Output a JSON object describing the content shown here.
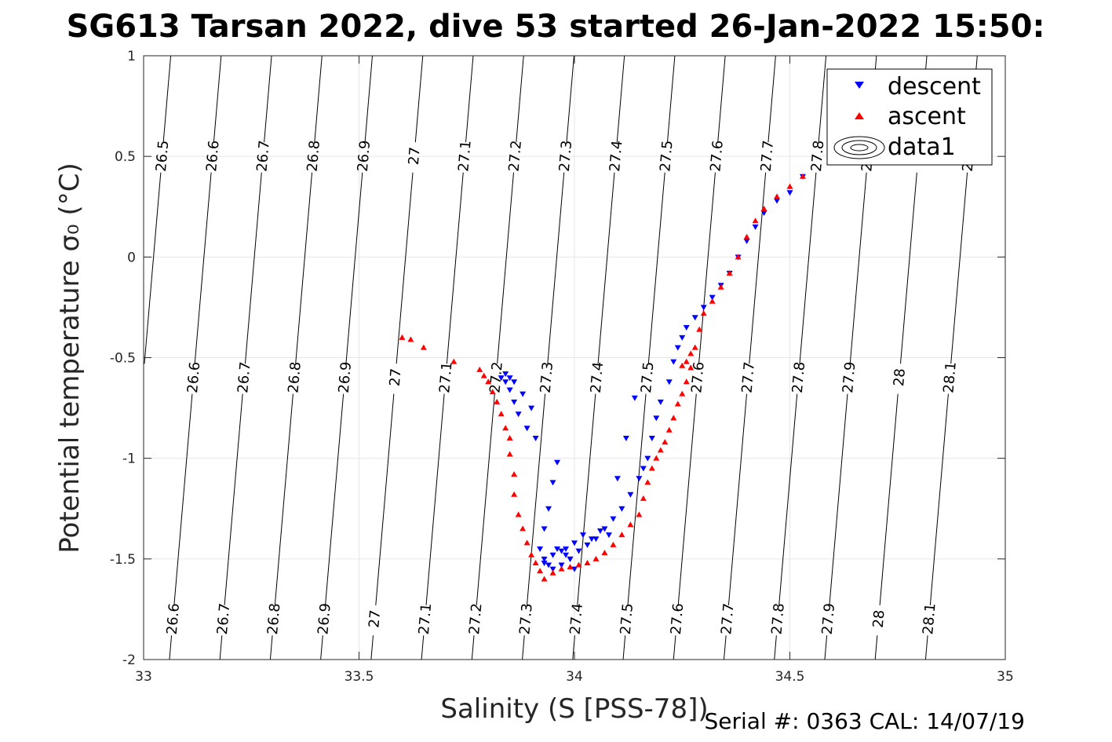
{
  "title": "SG613 Tarsan 2022, dive 53 started 26-Jan-2022 15:50:",
  "footer": "Serial #: 0363  CAL: 14/07/19",
  "chart_data": {
    "type": "scatter",
    "title": "SG613 Tarsan 2022, dive 53 started 26-Jan-2022 15:50:",
    "xlabel": "Salinity (S [PSS-78])",
    "ylabel": "Potential temperature σ₀ (°C)",
    "xlim": [
      33,
      35
    ],
    "ylim": [
      -2,
      1
    ],
    "x_ticks": [
      33,
      33.5,
      34,
      34.5,
      35
    ],
    "y_ticks": [
      -2,
      -1.5,
      -1,
      -0.5,
      0,
      0.5,
      1
    ],
    "x_tick_labels": [
      "33",
      "33.5",
      "34",
      "34.5",
      "35"
    ],
    "y_tick_labels": [
      "-2",
      "-1.5",
      "-1",
      "-0.5",
      "0",
      "0.5",
      "1"
    ],
    "grid": true,
    "legend_position": "top-right",
    "legend": [
      "descent",
      "ascent",
      "data1"
    ],
    "colors": {
      "descent": "#0000ff",
      "ascent": "#ff0000",
      "contour": "#000000",
      "grid": "#e6e6e6"
    },
    "series": [
      {
        "name": "descent",
        "marker": "down-triangle",
        "x": [
          34.53,
          34.5,
          34.47,
          34.44,
          34.42,
          34.4,
          34.38,
          34.36,
          34.34,
          34.32,
          34.3,
          34.28,
          34.26,
          34.25,
          34.24,
          34.23,
          34.22,
          34.2,
          34.19,
          34.18,
          34.17,
          34.16,
          34.15,
          34.13,
          34.11,
          34.09,
          34.07,
          34.05,
          34.03,
          34.01,
          33.99,
          33.97,
          33.95,
          33.94,
          33.93,
          33.92,
          33.93,
          33.94,
          33.95,
          33.96,
          33.98,
          34.0,
          34.02,
          34.04,
          34.06,
          34.08,
          34.1,
          34.12,
          34.14,
          34.0,
          33.99,
          33.98,
          33.97,
          33.96,
          33.95,
          33.93,
          33.91,
          33.89,
          33.87,
          33.86,
          33.85,
          33.84,
          33.83,
          33.84,
          33.85,
          33.86,
          33.88,
          33.9
        ],
        "y": [
          0.4,
          0.32,
          0.28,
          0.22,
          0.15,
          0.08,
          0.0,
          -0.08,
          -0.14,
          -0.2,
          -0.25,
          -0.3,
          -0.35,
          -0.4,
          -0.45,
          -0.52,
          -0.62,
          -0.72,
          -0.8,
          -0.9,
          -1.0,
          -1.05,
          -1.1,
          -1.18,
          -1.25,
          -1.3,
          -1.35,
          -1.4,
          -1.43,
          -1.46,
          -1.5,
          -1.53,
          -1.55,
          -1.53,
          -1.5,
          -1.45,
          -1.35,
          -1.25,
          -1.12,
          -1.02,
          -1.45,
          -1.42,
          -1.38,
          -1.4,
          -1.36,
          -1.38,
          -1.1,
          -0.9,
          -0.7,
          -1.55,
          -1.5,
          -1.48,
          -1.46,
          -1.45,
          -1.48,
          -1.52,
          -0.9,
          -0.85,
          -0.78,
          -0.72,
          -0.66,
          -0.62,
          -0.6,
          -0.58,
          -0.6,
          -0.62,
          -0.68,
          -0.75
        ]
      },
      {
        "name": "ascent",
        "marker": "up-triangle",
        "x": [
          34.53,
          34.5,
          34.47,
          34.44,
          34.42,
          34.4,
          34.38,
          34.36,
          34.34,
          34.32,
          34.3,
          34.29,
          34.28,
          34.27,
          34.26,
          34.25,
          34.24,
          34.23,
          34.22,
          34.21,
          34.2,
          34.19,
          34.18,
          34.17,
          34.16,
          34.15,
          34.13,
          34.11,
          34.09,
          34.07,
          34.05,
          34.03,
          34.01,
          33.99,
          33.97,
          33.95,
          33.93,
          33.92,
          33.91,
          33.9,
          33.89,
          33.88,
          33.87,
          33.86,
          33.86,
          33.85,
          33.85,
          33.84,
          33.83,
          33.82,
          33.81,
          33.8,
          33.79,
          33.78,
          33.72,
          33.65,
          33.62,
          33.6,
          34.27,
          34.26,
          34.25
        ],
        "y": [
          0.4,
          0.35,
          0.3,
          0.24,
          0.18,
          0.1,
          0.0,
          -0.08,
          -0.15,
          -0.22,
          -0.28,
          -0.36,
          -0.45,
          -0.55,
          -0.62,
          -0.68,
          -0.73,
          -0.8,
          -0.86,
          -0.92,
          -0.96,
          -1.0,
          -1.05,
          -1.12,
          -1.2,
          -1.28,
          -1.33,
          -1.38,
          -1.43,
          -1.47,
          -1.5,
          -1.52,
          -1.53,
          -1.54,
          -1.55,
          -1.57,
          -1.6,
          -1.56,
          -1.52,
          -1.48,
          -1.42,
          -1.35,
          -1.28,
          -1.18,
          -1.08,
          -0.98,
          -0.9,
          -0.85,
          -0.78,
          -0.72,
          -0.67,
          -0.62,
          -0.59,
          -0.56,
          -0.52,
          -0.45,
          -0.41,
          -0.4,
          -0.48,
          -0.52,
          -0.54
        ]
      },
      {
        "name": "data1",
        "type": "contour",
        "contour_levels": [
          26.5,
          26.6,
          26.7,
          26.8,
          26.9,
          27,
          27.1,
          27.2,
          27.3,
          27.4,
          27.5,
          27.6,
          27.7,
          27.8,
          27.9,
          28,
          28.1
        ],
        "contour_label_text": [
          "26.5",
          "26.6",
          "26.7",
          "26.8",
          "26.9",
          "27",
          "27.1",
          "27.2",
          "27.3",
          "27.4",
          "27.5",
          "27.6",
          "27.7",
          "27.8",
          "27.9",
          "28",
          "28.1"
        ]
      }
    ]
  }
}
